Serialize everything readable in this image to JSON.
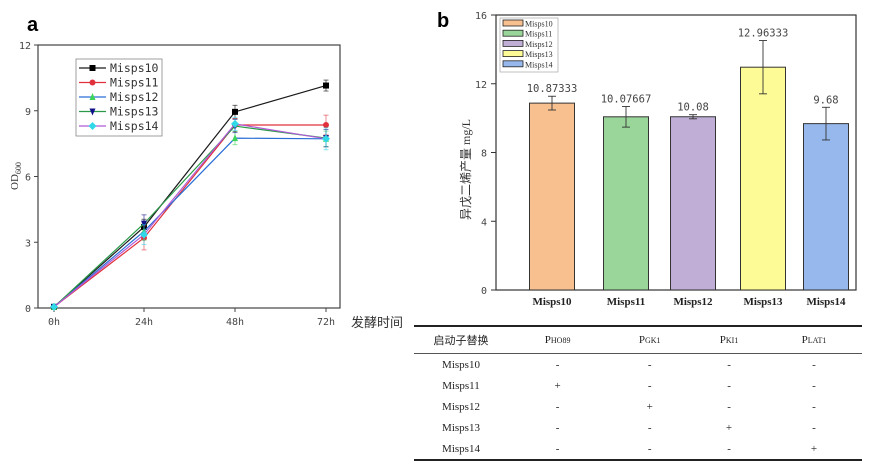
{
  "panels": {
    "a": "a",
    "b": "b"
  },
  "chart_data": [
    {
      "type": "line",
      "title": "",
      "xlabel": "发酵时间",
      "ylabel_main": "OD",
      "ylabel_sub": "600",
      "x": [
        "0h",
        "24h",
        "48h",
        "72h"
      ],
      "yticks": [
        "0",
        "3",
        "6",
        "9",
        "12"
      ],
      "ylim": [
        0,
        12
      ],
      "legend_position": "top-left",
      "series": [
        {
          "name": "Misps10",
          "line_color": "#1a1a1a",
          "marker_color": "#000000",
          "marker": "square",
          "values": [
            0.05,
            3.7,
            8.95,
            10.15
          ],
          "errors": [
            0.05,
            0.35,
            0.3,
            0.25
          ]
        },
        {
          "name": "Misps11",
          "line_color": "#e0303a",
          "marker_color": "#e0303a",
          "marker": "circle",
          "values": [
            0.05,
            3.2,
            8.35,
            8.35
          ],
          "errors": [
            0.05,
            0.55,
            0.3,
            0.45
          ]
        },
        {
          "name": "Misps12",
          "line_color": "#2a6fd6",
          "marker_color": "#3ad45a",
          "marker": "triangle-up",
          "values": [
            0.05,
            3.5,
            7.75,
            7.72
          ],
          "errors": [
            0.05,
            0.4,
            0.3,
            0.35
          ]
        },
        {
          "name": "Misps13",
          "line_color": "#2a9a4a",
          "marker_color": "#10108a",
          "marker": "triangle-down",
          "values": [
            0.05,
            3.85,
            8.3,
            7.75
          ],
          "errors": [
            0.05,
            0.4,
            0.3,
            0.4
          ]
        },
        {
          "name": "Misps14",
          "line_color": "#b05ad8",
          "marker_color": "#30d8e8",
          "marker": "diamond",
          "values": [
            0.05,
            3.35,
            8.4,
            7.72
          ],
          "errors": [
            0.05,
            0.45,
            0.3,
            0.5
          ]
        }
      ]
    },
    {
      "type": "bar",
      "title": "",
      "xlabel": "",
      "ylabel": "异戊二烯产量 mg/L",
      "categories": [
        "Misps10",
        "Misps11",
        "Misps12",
        "Misps13",
        "Misps14"
      ],
      "values": [
        10.87333,
        10.07667,
        10.08,
        12.96333,
        9.68
      ],
      "value_labels": [
        "10.87333",
        "10.07667",
        "10.08",
        "12.96333",
        "9.68"
      ],
      "errors": [
        0.4,
        0.6,
        0.12,
        1.55,
        0.95
      ],
      "colors": [
        "#f9c08f",
        "#9ad69a",
        "#c0aed6",
        "#fdfb96",
        "#96b8ec"
      ],
      "yticks": [
        "0",
        "4",
        "8",
        "12",
        "16"
      ],
      "ylim": [
        0,
        16
      ],
      "legend_position": "top-left",
      "legend": [
        "Misps10",
        "Misps11",
        "Misps12",
        "Misps13",
        "Misps14"
      ]
    }
  ],
  "table": {
    "header": {
      "label": "启动子替换",
      "cols": [
        {
          "main": "P",
          "sub": "HO89"
        },
        {
          "main": "P",
          "sub": "GK1"
        },
        {
          "main": "P",
          "sub": "KI1"
        },
        {
          "main": "P",
          "sub": "LAT1"
        }
      ]
    },
    "rows": [
      {
        "name": "Misps10",
        "cells": [
          "-",
          "-",
          "-",
          "-"
        ]
      },
      {
        "name": "Misps11",
        "cells": [
          "+",
          "-",
          "-",
          "-"
        ]
      },
      {
        "name": "Misps12",
        "cells": [
          "-",
          "+",
          "-",
          "-"
        ]
      },
      {
        "name": "Misps13",
        "cells": [
          "-",
          "-",
          "+",
          "-"
        ]
      },
      {
        "name": "Misps14",
        "cells": [
          "-",
          "-",
          "-",
          "+"
        ]
      }
    ]
  }
}
